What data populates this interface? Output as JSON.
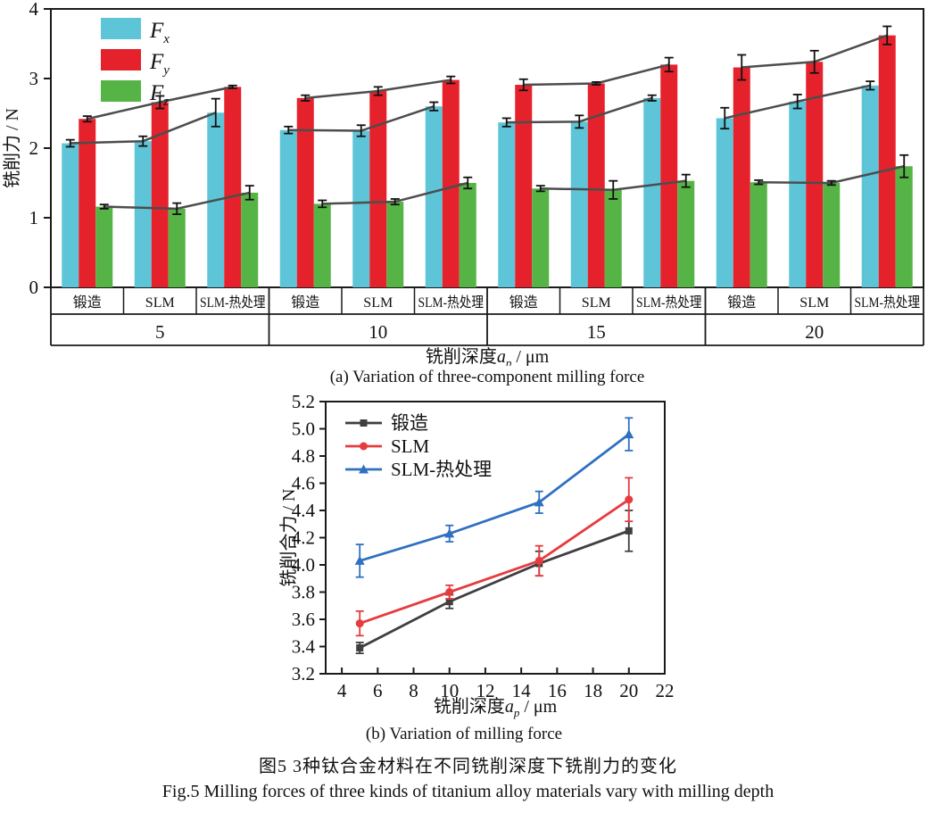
{
  "captions": {
    "a": "(a) Variation of three-component milling force",
    "b": "(b) Variation of milling force",
    "title_cn": "图5  3种钛合金材料在不同铣削深度下铣削力的变化",
    "title_en": "Fig.5  Milling forces of three kinds of titanium alloy materials vary with milling depth"
  },
  "colors": {
    "bar_fx": "#5ec5d8",
    "bar_fy": "#e5222c",
    "bar_fz": "#56b447",
    "connector": "#4d4d4d",
    "axis": "#1a1a1a",
    "line_forged": "#3f3f41",
    "line_slm": "#e73b3e",
    "line_slm_ht": "#3070c0"
  },
  "chart_data": [
    {
      "type": "bar",
      "id": "three-component-milling-force",
      "ylabel": "铣削力 / N",
      "xlabel": {
        "prefix": "铣削深度",
        "var": "a",
        "sub": "p",
        "suffix": " / μm"
      },
      "ylim": [
        0,
        4
      ],
      "yticks": [
        0,
        1,
        2,
        3,
        4
      ],
      "depth_groups": [
        "5",
        "10",
        "15",
        "20"
      ],
      "materials": [
        "锻造",
        "SLM",
        "SLM-热处理"
      ],
      "legend_position": "top-left-inside",
      "grid": false,
      "series": [
        {
          "name": "Fx",
          "label_base": "F",
          "label_sub": "x",
          "color": "#5ec5d8",
          "values": [
            [
              2.07,
              2.1,
              2.51
            ],
            [
              2.26,
              2.25,
              2.6
            ],
            [
              2.37,
              2.38,
              2.72
            ],
            [
              2.43,
              2.67,
              2.9
            ]
          ],
          "errors": [
            [
              0.05,
              0.07,
              0.2
            ],
            [
              0.05,
              0.08,
              0.06
            ],
            [
              0.06,
              0.09,
              0.04
            ],
            [
              0.15,
              0.1,
              0.06
            ]
          ]
        },
        {
          "name": "Fy",
          "label_base": "F",
          "label_sub": "y",
          "color": "#e5222c",
          "values": [
            [
              2.42,
              2.66,
              2.88
            ],
            [
              2.72,
              2.82,
              2.98
            ],
            [
              2.91,
              2.93,
              3.2
            ],
            [
              3.16,
              3.24,
              3.62
            ]
          ],
          "errors": [
            [
              0.04,
              0.09,
              0.02
            ],
            [
              0.04,
              0.06,
              0.05
            ],
            [
              0.08,
              0.02,
              0.1
            ],
            [
              0.18,
              0.16,
              0.13
            ]
          ]
        },
        {
          "name": "Fz",
          "label_base": "F",
          "label_sub": "z",
          "color": "#56b447",
          "values": [
            [
              1.16,
              1.13,
              1.36
            ],
            [
              1.2,
              1.23,
              1.5
            ],
            [
              1.42,
              1.4,
              1.53
            ],
            [
              1.51,
              1.5,
              1.74
            ]
          ],
          "errors": [
            [
              0.03,
              0.08,
              0.1
            ],
            [
              0.05,
              0.04,
              0.08
            ],
            [
              0.04,
              0.13,
              0.09
            ],
            [
              0.03,
              0.03,
              0.16
            ]
          ]
        }
      ]
    },
    {
      "type": "line",
      "id": "resultant-milling-force",
      "ylabel": "铣削合力 / N",
      "xlabel": {
        "prefix": "铣削深度",
        "var": "a",
        "sub": "p",
        "suffix": " / μm"
      },
      "xlim": [
        3.1,
        22.0
      ],
      "ylim": [
        3.2,
        5.2
      ],
      "xticks": [
        4,
        6,
        8,
        10,
        12,
        14,
        16,
        18,
        20,
        22
      ],
      "yticks": [
        3.2,
        3.4,
        3.6,
        3.8,
        4.0,
        4.2,
        4.4,
        4.6,
        4.8,
        5.0,
        5.2
      ],
      "x": [
        5,
        10,
        15,
        20
      ],
      "legend_position": "top-left-inside",
      "grid": false,
      "series": [
        {
          "name": "锻造",
          "marker": "square",
          "color": "#3f3f41",
          "values": [
            3.39,
            3.73,
            4.01,
            4.25
          ],
          "errors": [
            0.04,
            0.05,
            0.09,
            0.15
          ]
        },
        {
          "name": "SLM",
          "marker": "circle",
          "color": "#e73b3e",
          "values": [
            3.57,
            3.8,
            4.03,
            4.48
          ],
          "errors": [
            0.09,
            0.05,
            0.11,
            0.16
          ]
        },
        {
          "name": "SLM-热处理",
          "marker": "triangle",
          "color": "#3070c0",
          "values": [
            4.03,
            4.23,
            4.46,
            4.96
          ],
          "errors": [
            0.12,
            0.06,
            0.08,
            0.12
          ]
        }
      ]
    }
  ]
}
